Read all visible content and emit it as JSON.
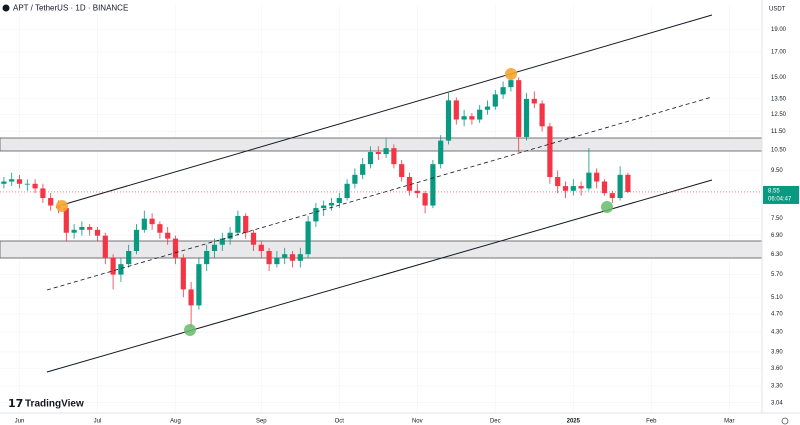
{
  "chart_data": {
    "type": "candlestick",
    "title": "APT / TetherUS · 1D · BINANCE",
    "y_unit": "USDT",
    "brand": "TradingView",
    "countdown": "06:04:47",
    "last_price": 8.55,
    "log_scale": true,
    "up_color": "#089981",
    "down_color": "#f23645",
    "ylim": [
      2.89,
      21.4
    ],
    "yticks": [
      {
        "value": 19,
        "label": "19.00"
      },
      {
        "value": 17,
        "label": "17.00"
      },
      {
        "value": 15,
        "label": "15.00"
      },
      {
        "value": 13.5,
        "label": "13.50"
      },
      {
        "value": 12.5,
        "label": "12.50"
      },
      {
        "value": 11.5,
        "label": "11.50"
      },
      {
        "value": 10.5,
        "label": "10.50"
      },
      {
        "value": 9.5,
        "label": "9.50"
      },
      {
        "value": 7.5,
        "label": "7.50"
      },
      {
        "value": 6.9,
        "label": "6.90"
      },
      {
        "value": 6.3,
        "label": "6.30"
      },
      {
        "value": 5.7,
        "label": "5.70"
      },
      {
        "value": 5.1,
        "label": "5.10"
      },
      {
        "value": 4.7,
        "label": "4.70"
      },
      {
        "value": 4.3,
        "label": "4.30"
      },
      {
        "value": 3.9,
        "label": "3.90"
      },
      {
        "value": 3.6,
        "label": "3.60"
      },
      {
        "value": 3.3,
        "label": "3.30"
      },
      {
        "value": 3.04,
        "label": "3.04"
      }
    ],
    "categories": [
      null,
      null,
      "Jun",
      null,
      null,
      null,
      null,
      null,
      null,
      null,
      null,
      null,
      "Jul",
      null,
      null,
      null,
      null,
      null,
      null,
      null,
      null,
      null,
      "Aug",
      null,
      null,
      null,
      null,
      null,
      null,
      null,
      null,
      null,
      null,
      "Sep",
      null,
      null,
      null,
      null,
      null,
      null,
      null,
      null,
      null,
      "Oct",
      null,
      null,
      null,
      null,
      null,
      null,
      null,
      null,
      null,
      "Nov",
      null,
      null,
      null,
      null,
      null,
      null,
      null,
      null,
      null,
      "Dec",
      null,
      null,
      null,
      null,
      null,
      null,
      null,
      null,
      null,
      "2025",
      null,
      null,
      null,
      null,
      null,
      null,
      null,
      null,
      null,
      "Feb",
      null,
      null,
      null,
      null,
      null,
      null,
      null,
      null,
      null,
      "Mar"
    ],
    "open": [
      8.9,
      9.0,
      9.1,
      8.9,
      8.9,
      8.7,
      8.3,
      8.0,
      7.9,
      7.0,
      7.1,
      7.2,
      7.1,
      6.9,
      6.2,
      5.7,
      6.0,
      6.4,
      7.1,
      7.5,
      7.3,
      7.0,
      6.8,
      6.2,
      5.3,
      4.9,
      6.0,
      6.4,
      6.6,
      6.8,
      7.0,
      7.6,
      7.0,
      6.6,
      6.4,
      6.0,
      6.2,
      6.3,
      6.1,
      6.3,
      7.4,
      7.9,
      8.0,
      8.1,
      8.3,
      8.9,
      9.3,
      9.8,
      10.4,
      10.3,
      10.6,
      9.8,
      9.2,
      8.6,
      8.5,
      8.0,
      9.8,
      11.0,
      13.4,
      12.2,
      12.4,
      12.2,
      12.8,
      13.0,
      13.8,
      14.3,
      14.8,
      11.2,
      13.5,
      13.2,
      11.8,
      9.2,
      8.8,
      8.6,
      8.8,
      8.7,
      9.4,
      9.0,
      8.5,
      8.3,
      9.3,
      null,
      null,
      null,
      null,
      null,
      null,
      null,
      null,
      null,
      null,
      null,
      null,
      null
    ],
    "high": [
      9.2,
      9.4,
      9.3,
      9.1,
      9.1,
      8.9,
      8.5,
      8.2,
      8.0,
      7.3,
      7.4,
      7.3,
      7.2,
      7.0,
      6.3,
      6.2,
      6.6,
      7.3,
      7.8,
      7.7,
      7.4,
      7.2,
      6.9,
      6.3,
      5.5,
      6.2,
      6.6,
      6.8,
      7.0,
      7.2,
      7.8,
      7.7,
      7.1,
      6.7,
      6.5,
      6.4,
      6.5,
      6.4,
      6.5,
      7.6,
      8.1,
      8.2,
      8.3,
      8.5,
      9.1,
      9.6,
      10.1,
      10.7,
      10.7,
      11.1,
      10.8,
      10.0,
      9.4,
      8.9,
      8.6,
      10.0,
      11.3,
      13.9,
      13.6,
      12.8,
      12.6,
      13.1,
      13.4,
      14.1,
      14.7,
      15.3,
      15.0,
      13.9,
      14.0,
      13.4,
      12.0,
      9.5,
      9.0,
      9.1,
      9.0,
      10.6,
      9.6,
      9.1,
      8.6,
      9.7,
      9.4,
      null,
      null,
      null,
      null,
      null,
      null,
      null,
      null,
      null,
      null,
      null,
      null,
      null
    ],
    "low": [
      8.7,
      8.8,
      8.7,
      8.6,
      8.5,
      8.1,
      7.8,
      7.7,
      6.7,
      6.8,
      6.9,
      6.9,
      6.7,
      6.0,
      5.3,
      5.5,
      5.9,
      6.3,
      7.0,
      7.1,
      6.8,
      6.6,
      6.0,
      5.1,
      4.4,
      4.8,
      5.8,
      6.2,
      6.4,
      6.6,
      6.9,
      6.8,
      6.4,
      6.2,
      5.8,
      5.9,
      6.0,
      5.9,
      5.9,
      6.2,
      7.2,
      7.6,
      7.8,
      7.9,
      8.2,
      8.7,
      9.1,
      9.6,
      10.0,
      10.1,
      9.6,
      9.0,
      8.4,
      8.3,
      7.7,
      7.9,
      9.6,
      10.8,
      11.9,
      11.8,
      11.9,
      12.0,
      12.5,
      12.8,
      13.5,
      14.0,
      10.4,
      11.0,
      12.9,
      11.5,
      8.9,
      8.5,
      8.3,
      8.4,
      8.4,
      8.6,
      8.7,
      8.4,
      8.1,
      8.2,
      8.5,
      null,
      null,
      null,
      null,
      null,
      null,
      null,
      null,
      null,
      null,
      null,
      null,
      null
    ],
    "close": [
      9.0,
      9.1,
      8.9,
      8.9,
      8.7,
      8.3,
      8.0,
      7.9,
      7.0,
      7.1,
      7.2,
      7.1,
      6.9,
      6.2,
      5.7,
      6.0,
      6.4,
      7.1,
      7.5,
      7.3,
      7.0,
      6.8,
      6.2,
      5.3,
      4.9,
      6.0,
      6.4,
      6.6,
      6.8,
      7.0,
      7.6,
      7.0,
      6.6,
      6.4,
      6.0,
      6.2,
      6.3,
      6.1,
      6.3,
      7.4,
      7.9,
      8.0,
      8.1,
      8.3,
      8.9,
      9.3,
      9.8,
      10.4,
      10.3,
      10.6,
      9.8,
      9.2,
      8.6,
      8.5,
      8.0,
      9.8,
      11.0,
      13.4,
      12.2,
      12.4,
      12.2,
      12.8,
      13.0,
      13.8,
      14.3,
      14.8,
      11.2,
      13.5,
      13.2,
      11.8,
      9.2,
      8.8,
      8.6,
      8.8,
      8.7,
      9.4,
      9.0,
      8.5,
      8.3,
      9.3,
      8.55,
      null,
      null,
      null,
      null,
      null,
      null,
      null,
      null,
      null,
      null,
      null,
      null,
      null
    ]
  }
}
